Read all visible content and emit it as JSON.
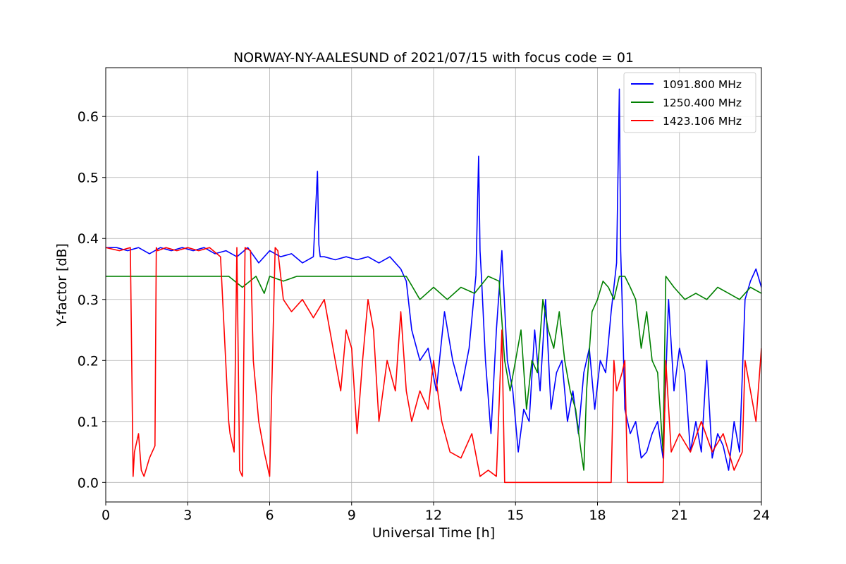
{
  "chart_data": {
    "type": "line",
    "title": "NORWAY-NY-AALESUND of 2021/07/15 with focus code = 01",
    "xlabel": "Universal Time [h]",
    "ylabel": "Y-factor [dB]",
    "xlim": [
      0,
      24
    ],
    "ylim": [
      -0.032,
      0.68
    ],
    "xticks": [
      0,
      3,
      6,
      9,
      12,
      15,
      18,
      21,
      24
    ],
    "xtick_labels": [
      "0",
      "3",
      "6",
      "9",
      "12",
      "15",
      "18",
      "21",
      "24"
    ],
    "yticks": [
      0.0,
      0.1,
      0.2,
      0.3,
      0.4,
      0.5,
      0.6
    ],
    "ytick_labels": [
      "0.0",
      "0.1",
      "0.2",
      "0.3",
      "0.4",
      "0.5",
      "0.6"
    ],
    "grid": true,
    "legend_position": "top-right",
    "series": [
      {
        "name": "1091.800 MHz",
        "color": "#0000ff",
        "x": [
          0,
          0.4,
          0.8,
          1.2,
          1.6,
          2.0,
          2.4,
          2.8,
          3.2,
          3.6,
          4.0,
          4.4,
          4.8,
          5.2,
          5.6,
          6.0,
          6.4,
          6.8,
          7.2,
          7.6,
          7.75,
          7.8,
          7.85,
          8.0,
          8.4,
          8.8,
          9.2,
          9.6,
          10.0,
          10.4,
          10.8,
          11.0,
          11.2,
          11.5,
          11.8,
          12.1,
          12.4,
          12.7,
          13.0,
          13.3,
          13.55,
          13.65,
          13.7,
          13.75,
          13.9,
          14.1,
          14.3,
          14.5,
          14.7,
          14.9,
          15.1,
          15.3,
          15.5,
          15.7,
          15.9,
          16.1,
          16.3,
          16.5,
          16.7,
          16.9,
          17.1,
          17.3,
          17.5,
          17.7,
          17.9,
          18.1,
          18.3,
          18.5,
          18.7,
          18.8,
          18.85,
          18.9,
          19.0,
          19.2,
          19.4,
          19.6,
          19.8,
          20.0,
          20.2,
          20.4,
          20.6,
          20.8,
          21.0,
          21.2,
          21.4,
          21.6,
          21.8,
          22.0,
          22.2,
          22.4,
          22.6,
          22.8,
          23.0,
          23.2,
          23.4,
          23.6,
          23.8,
          24.0
        ],
        "values": [
          0.385,
          0.385,
          0.38,
          0.385,
          0.375,
          0.385,
          0.38,
          0.385,
          0.38,
          0.385,
          0.375,
          0.38,
          0.37,
          0.385,
          0.36,
          0.38,
          0.37,
          0.375,
          0.36,
          0.37,
          0.51,
          0.39,
          0.37,
          0.37,
          0.365,
          0.37,
          0.365,
          0.37,
          0.36,
          0.37,
          0.35,
          0.33,
          0.25,
          0.2,
          0.22,
          0.15,
          0.28,
          0.2,
          0.15,
          0.22,
          0.34,
          0.535,
          0.38,
          0.34,
          0.2,
          0.08,
          0.25,
          0.38,
          0.2,
          0.15,
          0.05,
          0.12,
          0.1,
          0.25,
          0.15,
          0.3,
          0.12,
          0.18,
          0.2,
          0.1,
          0.15,
          0.08,
          0.18,
          0.22,
          0.12,
          0.2,
          0.18,
          0.28,
          0.36,
          0.645,
          0.38,
          0.3,
          0.12,
          0.08,
          0.1,
          0.04,
          0.05,
          0.08,
          0.1,
          0.04,
          0.3,
          0.15,
          0.22,
          0.18,
          0.05,
          0.1,
          0.05,
          0.2,
          0.04,
          0.08,
          0.06,
          0.02,
          0.1,
          0.05,
          0.3,
          0.33,
          0.35,
          0.32
        ]
      },
      {
        "name": "1250.400 MHz",
        "color": "#008000",
        "x": [
          0,
          1.0,
          2.0,
          3.0,
          4.0,
          4.5,
          5.0,
          5.5,
          5.8,
          6.0,
          6.5,
          7.0,
          8.0,
          9.0,
          10.0,
          10.5,
          11.0,
          11.5,
          12.0,
          12.5,
          13.0,
          13.5,
          14.0,
          14.4,
          14.6,
          14.8,
          15.0,
          15.2,
          15.4,
          15.6,
          15.8,
          16.0,
          16.2,
          16.4,
          16.6,
          16.8,
          17.0,
          17.2,
          17.4,
          17.5,
          17.6,
          17.8,
          18.0,
          18.2,
          18.4,
          18.6,
          18.8,
          19.0,
          19.2,
          19.4,
          19.6,
          19.8,
          20.0,
          20.2,
          20.4,
          20.5,
          20.8,
          21.2,
          21.6,
          22.0,
          22.4,
          22.8,
          23.2,
          23.6,
          24.0
        ],
        "values": [
          0.338,
          0.338,
          0.338,
          0.338,
          0.338,
          0.338,
          0.32,
          0.338,
          0.31,
          0.338,
          0.33,
          0.338,
          0.338,
          0.338,
          0.338,
          0.338,
          0.338,
          0.3,
          0.32,
          0.3,
          0.32,
          0.31,
          0.338,
          0.33,
          0.2,
          0.15,
          0.2,
          0.25,
          0.12,
          0.2,
          0.18,
          0.3,
          0.25,
          0.22,
          0.28,
          0.2,
          0.15,
          0.12,
          0.05,
          0.02,
          0.15,
          0.28,
          0.3,
          0.33,
          0.32,
          0.3,
          0.338,
          0.338,
          0.32,
          0.3,
          0.22,
          0.28,
          0.2,
          0.18,
          0.05,
          0.338,
          0.32,
          0.3,
          0.31,
          0.3,
          0.32,
          0.31,
          0.3,
          0.32,
          0.31
        ]
      },
      {
        "name": "1423.106 MHz",
        "color": "#ff0000",
        "x": [
          0,
          0.5,
          0.9,
          1.0,
          1.05,
          1.2,
          1.3,
          1.4,
          1.6,
          1.8,
          1.85,
          1.9,
          2.2,
          2.6,
          3.0,
          3.4,
          3.8,
          4.2,
          4.5,
          4.55,
          4.7,
          4.8,
          4.9,
          5.0,
          5.1,
          5.3,
          5.4,
          5.6,
          5.8,
          6.0,
          6.2,
          6.3,
          6.5,
          6.8,
          7.2,
          7.6,
          8.0,
          8.4,
          8.6,
          8.8,
          9.0,
          9.2,
          9.4,
          9.6,
          9.8,
          10.0,
          10.3,
          10.6,
          10.8,
          11.0,
          11.2,
          11.5,
          11.8,
          12.0,
          12.3,
          12.6,
          13.0,
          13.4,
          13.7,
          14.0,
          14.3,
          14.5,
          14.6,
          15.0,
          15.5,
          16.0,
          16.5,
          17.0,
          17.5,
          18.0,
          18.5,
          18.6,
          18.7,
          18.9,
          19.0,
          19.1,
          19.2,
          19.6,
          20.0,
          20.3,
          20.4,
          20.5,
          20.7,
          21.0,
          21.4,
          21.8,
          22.2,
          22.6,
          23.0,
          23.3,
          23.4,
          23.6,
          23.8,
          24.0
        ],
        "values": [
          0.385,
          0.38,
          0.385,
          0.01,
          0.05,
          0.08,
          0.02,
          0.01,
          0.04,
          0.06,
          0.385,
          0.38,
          0.385,
          0.38,
          0.385,
          0.38,
          0.385,
          0.37,
          0.1,
          0.08,
          0.05,
          0.385,
          0.02,
          0.01,
          0.385,
          0.38,
          0.2,
          0.1,
          0.05,
          0.01,
          0.385,
          0.38,
          0.3,
          0.28,
          0.3,
          0.27,
          0.3,
          0.2,
          0.15,
          0.25,
          0.22,
          0.08,
          0.2,
          0.3,
          0.25,
          0.1,
          0.2,
          0.15,
          0.28,
          0.15,
          0.1,
          0.15,
          0.12,
          0.2,
          0.1,
          0.05,
          0.04,
          0.08,
          0.01,
          0.02,
          0.01,
          0.25,
          0.0,
          0.0,
          0.0,
          0.0,
          0.0,
          0.0,
          0.0,
          0.0,
          0.0,
          0.2,
          0.15,
          0.18,
          0.2,
          0.0,
          0.0,
          0.0,
          0.0,
          0.0,
          0.0,
          0.2,
          0.05,
          0.08,
          0.05,
          0.1,
          0.05,
          0.08,
          0.02,
          0.05,
          0.2,
          0.15,
          0.1,
          0.22
        ]
      }
    ]
  }
}
